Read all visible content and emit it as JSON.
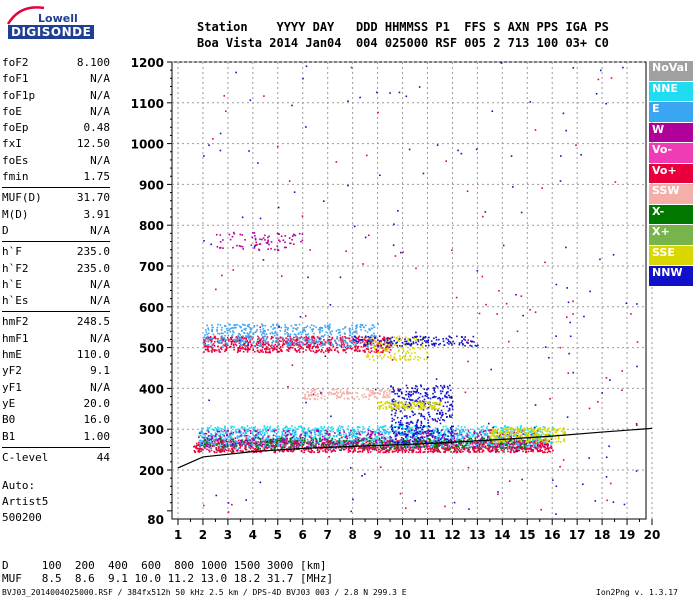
{
  "logo": {
    "line1": "Lowell",
    "line2": "DIGISONDE"
  },
  "header": {
    "line1": "Station    YYYY DAY   DDD HHMMSS P1  FFS S AXN PPS IGA PS",
    "line2": "Boa Vista 2014 Jan04  004 025000 RSF 005 2 713 100 03+ C0"
  },
  "params": [
    {
      "name": "foF2",
      "value": "8.100"
    },
    {
      "name": "foF1",
      "value": "N/A"
    },
    {
      "name": "foF1p",
      "value": "N/A"
    },
    {
      "name": "foE",
      "value": "N/A"
    },
    {
      "name": "foEp",
      "value": "0.48"
    },
    {
      "name": "fxI",
      "value": "12.50"
    },
    {
      "name": "foEs",
      "value": "N/A"
    },
    {
      "name": "fmin",
      "value": "1.75"
    },
    {
      "sep": true
    },
    {
      "name": "MUF(D)",
      "value": "31.70"
    },
    {
      "name": "M(D)",
      "value": "3.91"
    },
    {
      "name": "D",
      "value": "N/A"
    },
    {
      "sep": true
    },
    {
      "name": "h`F",
      "value": "235.0"
    },
    {
      "name": "h`F2",
      "value": "235.0"
    },
    {
      "name": "h`E",
      "value": "N/A"
    },
    {
      "name": "h`Es",
      "value": "N/A"
    },
    {
      "sep": true
    },
    {
      "name": "hmF2",
      "value": "248.5"
    },
    {
      "name": "hmF1",
      "value": "N/A"
    },
    {
      "name": "hmE",
      "value": "110.0"
    },
    {
      "name": "yF2",
      "value": "9.1"
    },
    {
      "name": "yF1",
      "value": "N/A"
    },
    {
      "name": "yE",
      "value": "20.0"
    },
    {
      "name": "B0",
      "value": "16.0"
    },
    {
      "name": "B1",
      "value": "1.00"
    },
    {
      "sep": true
    },
    {
      "name": "C-level",
      "value": "44"
    }
  ],
  "auto": {
    "line1": "Auto:",
    "line2": "Artist5",
    "line3": "500200"
  },
  "legend": [
    {
      "label": "NoVal",
      "color": "#a0a0a0"
    },
    {
      "label": "NNE",
      "color": "#1fdcf0"
    },
    {
      "label": "E",
      "color": "#3aa6f2"
    },
    {
      "label": "W",
      "color": "#b0009a"
    },
    {
      "label": "Vo-",
      "color": "#f03cb4"
    },
    {
      "label": "Vo+",
      "color": "#e8003c"
    },
    {
      "label": "SSW",
      "color": "#f4b0a8"
    },
    {
      "label": "X-",
      "color": "#007800"
    },
    {
      "label": "X+",
      "color": "#78b44c"
    },
    {
      "label": "SSE",
      "color": "#d8d800"
    },
    {
      "label": "NNW",
      "color": "#1010c8"
    }
  ],
  "footer": {
    "d_line": "D     100  200  400  600  800 1000 1500 3000 [km]",
    "muf_line": "MUF   8.5  8.6  9.1 10.0 11.2 13.0 18.2 31.7 [MHz]",
    "bottom": "BVJ03_2014004025000.RSF / 384fx512h 50 kHz 2.5 km / DPS-4D BVJ03 003 / 2.8 N 299.3 E",
    "version": "Ion2Png v. 1.3.17"
  },
  "chart_data": {
    "type": "scatter",
    "xlim": [
      1,
      20
    ],
    "ylim": [
      80,
      1200
    ],
    "xticks": [
      "1",
      "2",
      "3",
      "4",
      "5",
      "6",
      "7",
      "8",
      "9",
      "10",
      "11",
      "12",
      "13",
      "14",
      "15",
      "16",
      "17",
      "18",
      "19",
      "20"
    ],
    "yticks": [
      "80",
      "200",
      "300",
      "400",
      "500",
      "600",
      "700",
      "800",
      "900",
      "1000",
      "1100",
      "1200"
    ],
    "grid": true,
    "y_scale": "piecewise (80-100 compressed)",
    "trace_bands": [
      {
        "color": "#e8003c",
        "x": [
          1.6,
          16.0
        ],
        "y": [
          245,
          275
        ],
        "n": 1400
      },
      {
        "color": "#1fdcf0",
        "x": [
          1.8,
          16.0
        ],
        "y": [
          260,
          310
        ],
        "n": 1100
      },
      {
        "color": "#3aa6f2",
        "x": [
          1.8,
          15.5
        ],
        "y": [
          255,
          300
        ],
        "n": 600
      },
      {
        "color": "#b0009a",
        "x": [
          1.8,
          16.0
        ],
        "y": [
          255,
          300
        ],
        "n": 500
      },
      {
        "color": "#007800",
        "x": [
          2.0,
          15.0
        ],
        "y": [
          250,
          280
        ],
        "n": 300
      },
      {
        "color": "#d8d800",
        "x": [
          13.5,
          16.5
        ],
        "y": [
          270,
          305
        ],
        "n": 250
      },
      {
        "color": "#1010c8",
        "x": [
          9.5,
          12.0
        ],
        "y": [
          265,
          410
        ],
        "n": 400
      },
      {
        "color": "#e8003c",
        "x": [
          2.0,
          9.5
        ],
        "y": [
          490,
          530
        ],
        "n": 700
      },
      {
        "color": "#3aa6f2",
        "x": [
          2.0,
          9.0
        ],
        "y": [
          505,
          560
        ],
        "n": 500
      },
      {
        "color": "#d8d800",
        "x": [
          8.5,
          11.0
        ],
        "y": [
          470,
          530
        ],
        "n": 150
      },
      {
        "color": "#1010c8",
        "x": [
          8.0,
          13.0
        ],
        "y": [
          505,
          530
        ],
        "n": 150
      },
      {
        "color": "#f4b0a8",
        "x": [
          6.0,
          9.5
        ],
        "y": [
          375,
          400
        ],
        "n": 150
      },
      {
        "color": "#d8d800",
        "x": [
          9.0,
          11.5
        ],
        "y": [
          350,
          370
        ],
        "n": 150
      },
      {
        "color": "#b0009a",
        "x": [
          2.5,
          6.0
        ],
        "y": [
          740,
          785
        ],
        "n": 80
      },
      {
        "color": "#1010c8",
        "x": [
          2.0,
          19.5
        ],
        "y": [
          90,
          1200
        ],
        "n": 140
      },
      {
        "color": "#e8003c",
        "x": [
          2.0,
          19.5
        ],
        "y": [
          90,
          1200
        ],
        "n": 90
      }
    ],
    "profile_curve": [
      [
        1.0,
        205
      ],
      [
        2.0,
        232
      ],
      [
        4.0,
        245
      ],
      [
        6.0,
        253
      ],
      [
        8.0,
        258
      ],
      [
        10.0,
        262
      ],
      [
        12.0,
        268
      ],
      [
        14.0,
        275
      ],
      [
        16.0,
        283
      ],
      [
        18.0,
        293
      ],
      [
        20.0,
        302
      ]
    ]
  }
}
